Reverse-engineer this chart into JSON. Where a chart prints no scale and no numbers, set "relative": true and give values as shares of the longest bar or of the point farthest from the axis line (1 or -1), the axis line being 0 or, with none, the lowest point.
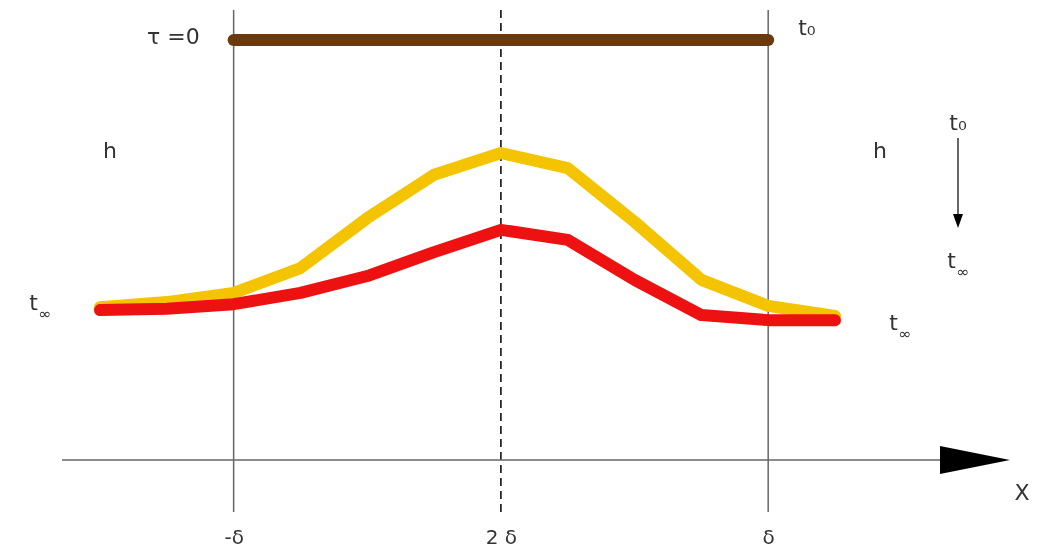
{
  "chart_data": {
    "type": "line",
    "relative": true,
    "categories": [
      null,
      null,
      "-δ",
      null,
      null,
      null,
      "2 δ",
      null,
      null,
      null,
      "δ",
      null
    ],
    "line_style": "solid",
    "grid": false,
    "series": [
      {
        "color": "#6b3a0c",
        "values": [
          null,
          null,
          1,
          1,
          1,
          1,
          1,
          1,
          1,
          1,
          1,
          null
        ]
      },
      {
        "color": "#f5c400",
        "values": [
          0.364,
          0.376,
          0.398,
          0.457,
          0.576,
          0.679,
          0.731,
          0.695,
          0.567,
          0.429,
          0.367,
          0.343
        ]
      },
      {
        "color": "#ee1111",
        "values": [
          0.357,
          0.36,
          0.371,
          0.398,
          0.438,
          0.495,
          0.548,
          0.524,
          0.429,
          0.345,
          0.333,
          0.333
        ]
      }
    ],
    "ref_lines": [
      {
        "axis": "x",
        "value": "-δ",
        "color": "#666666",
        "line_style": "solid"
      },
      {
        "axis": "x",
        "value": "2 δ",
        "color": "#000000",
        "line_style": "dashed"
      },
      {
        "axis": "x",
        "value": "δ",
        "color": "#666666",
        "line_style": "solid"
      }
    ],
    "annotations": [
      {
        "text": "τ =0",
        "x": "-δ",
        "y": 1
      },
      "h",
      "h",
      "t$_{∞}$",
      "t₀",
      "t$_{∞}$",
      {
        "text": "t₀",
        "x": "δ",
        "y": 1
      },
      "t$_{∞}$",
      "X"
    ]
  }
}
